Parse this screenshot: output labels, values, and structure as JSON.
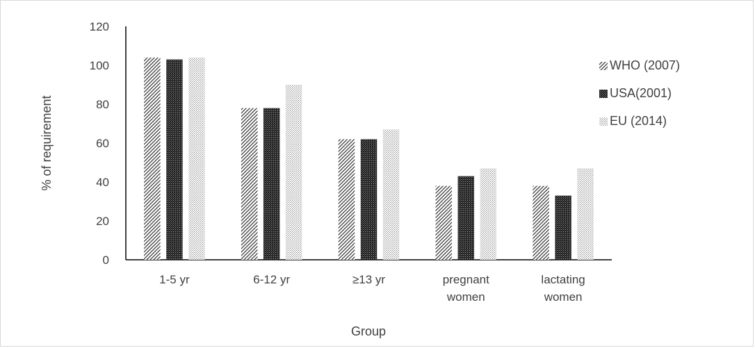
{
  "chart_data": {
    "type": "bar",
    "title": "",
    "xlabel": "Group",
    "ylabel": "% of requirement",
    "ylim": [
      0,
      120
    ],
    "yticks": [
      0,
      20,
      40,
      60,
      80,
      100,
      120
    ],
    "grid": false,
    "legend_position": "right",
    "categories": [
      [
        "1-5 yr"
      ],
      [
        "6-12 yr"
      ],
      [
        "≥13 yr"
      ],
      [
        "pregnant",
        "women"
      ],
      [
        "lactating",
        "women"
      ]
    ],
    "series": [
      {
        "name": "WHO (2007)",
        "pattern": "diagonal-hatch",
        "color": "#404040",
        "values": [
          104,
          78,
          62,
          38,
          38
        ]
      },
      {
        "name": "USA(2001)",
        "pattern": "dark-dots",
        "color": "#1a1a1a",
        "values": [
          103,
          78,
          62,
          43,
          33
        ]
      },
      {
        "name": "EU (2014)",
        "pattern": "light-dots",
        "color": "#808080",
        "values": [
          104,
          90,
          67,
          47,
          47
        ]
      }
    ]
  }
}
